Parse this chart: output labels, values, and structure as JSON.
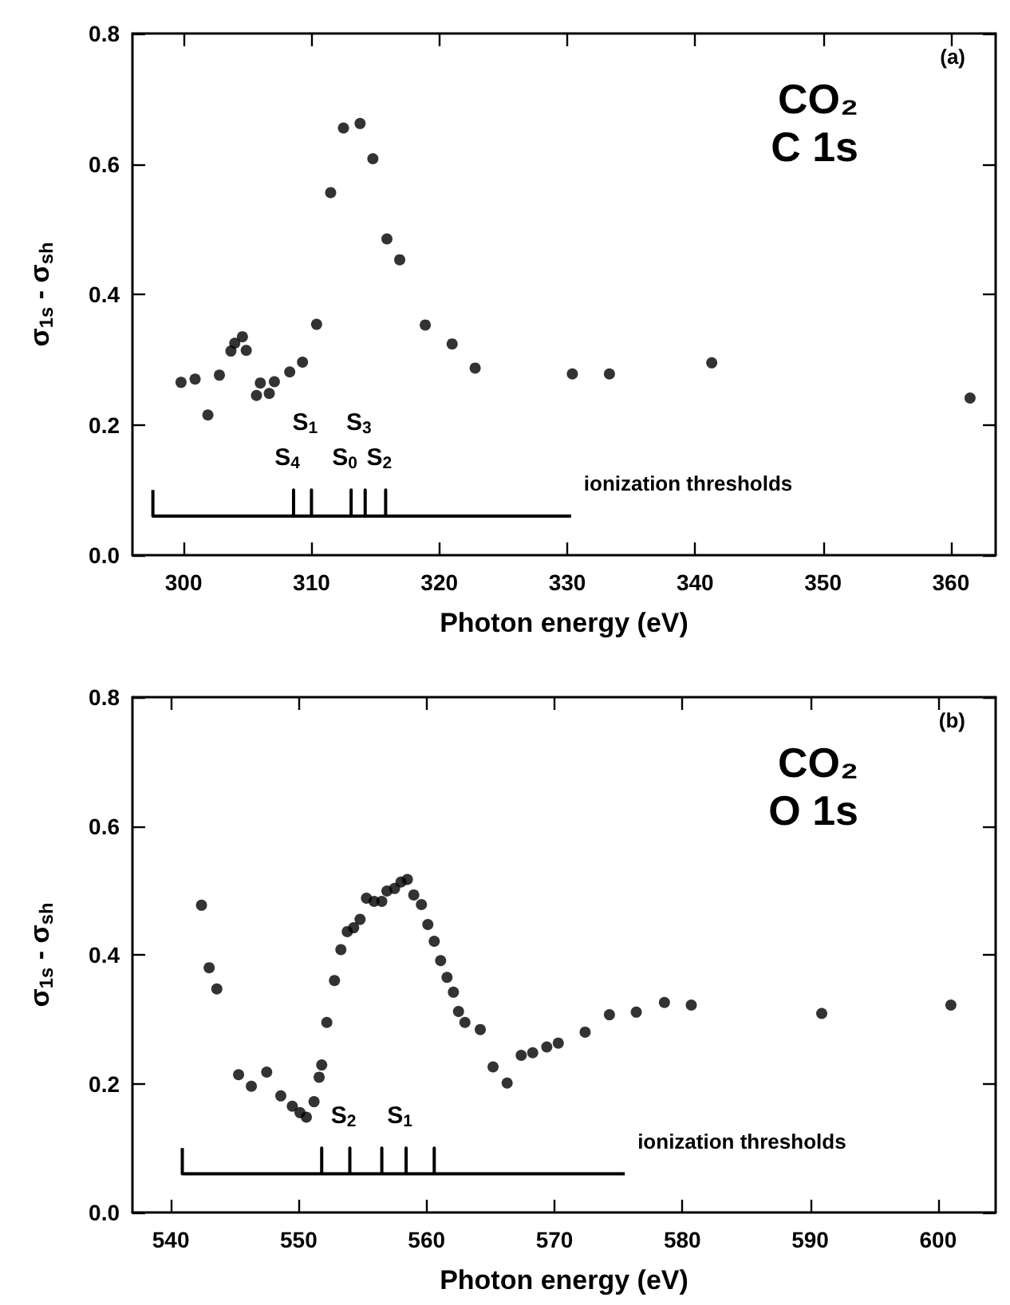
{
  "chart_data": [
    {
      "type": "scatter",
      "xlabel": "Photon energy (eV)",
      "ylabel": "σ$_{1s}$ - σ$_{sh}$",
      "marker": "circle",
      "grid": false,
      "xlim": [
        296,
        363.5
      ],
      "xticks": [
        300,
        310,
        320,
        330,
        340,
        350,
        360
      ],
      "ylim": [
        0,
        0.8
      ],
      "yticks": [
        {
          "value": 0,
          "label": "0.0"
        },
        {
          "value": 0.2,
          "label": "0.2"
        },
        {
          "value": 0.4,
          "label": "0.4"
        },
        {
          "value": 0.6,
          "label": "0.6"
        },
        {
          "value": 0.8,
          "label": "0.8"
        }
      ],
      "annotations": [
        "(a)",
        "CO₂",
        "C 1s",
        "ionization thresholds",
        {
          "text": "S$_{4}$",
          "x": 308.6,
          "y": 0.1
        },
        {
          "text": "S$_{1}$",
          "x": 310.0,
          "y": 0.1
        },
        {
          "text": "S$_{0}$",
          "x": 313.1,
          "y": 0.1
        },
        {
          "text": "S$_{3}$",
          "x": 314.2,
          "y": 0.1
        },
        {
          "text": "S$_{2}$",
          "x": 315.8,
          "y": 0.1
        }
      ],
      "series": [
        {
          "color": "#000000",
          "x": [
            299.8,
            300.9,
            301.9,
            302.8,
            303.7,
            304.0,
            304.6,
            304.9,
            305.7,
            306.0,
            306.7,
            307.1,
            308.3,
            309.3,
            310.4,
            311.5,
            312.5,
            313.8,
            314.8,
            315.9,
            316.9,
            318.9,
            321.0,
            322.8,
            330.4,
            333.3,
            341.3,
            361.5
          ],
          "values": [
            0.265,
            0.27,
            0.215,
            0.276,
            0.313,
            0.325,
            0.335,
            0.314,
            0.245,
            0.264,
            0.248,
            0.266,
            0.281,
            0.296,
            0.354,
            0.556,
            0.655,
            0.662,
            0.608,
            0.485,
            0.453,
            0.353,
            0.324,
            0.287,
            0.278,
            0.278,
            0.295,
            0.241
          ]
        },
        {
          "type": "line",
          "color": "#000000",
          "marker": "none",
          "x": [
            297.6,
            297.6,
            308.6,
            308.6,
            308.6,
            310.0,
            310.0,
            310.0,
            313.1,
            313.1,
            313.1,
            314.2,
            314.2,
            314.2,
            315.8,
            315.8,
            315.8,
            330.3
          ],
          "values": [
            0.1,
            0.06,
            0.06,
            0.1,
            0.06,
            0.06,
            0.1,
            0.06,
            0.06,
            0.1,
            0.06,
            0.06,
            0.1,
            0.06,
            0.06,
            0.1,
            0.06,
            0.06
          ]
        }
      ]
    },
    {
      "type": "scatter",
      "xlabel": "Photon energy (eV)",
      "ylabel": "σ$_{1s}$ - σ$_{sh}$",
      "marker": "circle",
      "grid": false,
      "xlim": [
        537,
        604.5
      ],
      "xticks": [
        540,
        550,
        560,
        570,
        580,
        590,
        600
      ],
      "ylim": [
        0,
        0.8
      ],
      "yticks": [
        {
          "value": 0,
          "label": "0.0"
        },
        {
          "value": 0.2,
          "label": "0.2"
        },
        {
          "value": 0.4,
          "label": "0.4"
        },
        {
          "value": 0.6,
          "label": "0.6"
        },
        {
          "value": 0.8,
          "label": "0.8"
        }
      ],
      "annotations": [
        "(b)",
        "CO₂",
        "O 1s",
        "ionization thresholds",
        {
          "text": "S$_{2}$",
          "x": 554.0,
          "y": 0.1
        },
        {
          "text": "S$_{1}$",
          "x": 558.4,
          "y": 0.1
        }
      ],
      "series": [
        {
          "color": "#000000",
          "x": [
            542.4,
            543.0,
            543.6,
            545.3,
            546.3,
            547.5,
            548.6,
            549.5,
            550.1,
            550.6,
            551.2,
            551.6,
            551.8,
            552.2,
            552.8,
            553.3,
            553.8,
            554.3,
            554.8,
            555.3,
            555.9,
            556.5,
            556.9,
            557.5,
            558.0,
            558.5,
            559.0,
            559.6,
            560.1,
            560.6,
            561.1,
            561.6,
            562.1,
            562.5,
            563.0,
            564.2,
            565.2,
            566.3,
            567.4,
            568.3,
            569.4,
            570.3,
            572.4,
            574.3,
            576.4,
            578.6,
            580.7,
            590.9,
            601.0
          ],
          "values": [
            0.477,
            0.38,
            0.347,
            0.214,
            0.196,
            0.218,
            0.181,
            0.165,
            0.155,
            0.148,
            0.172,
            0.21,
            0.229,
            0.295,
            0.36,
            0.408,
            0.436,
            0.442,
            0.455,
            0.488,
            0.483,
            0.483,
            0.499,
            0.503,
            0.513,
            0.517,
            0.493,
            0.478,
            0.447,
            0.421,
            0.391,
            0.365,
            0.342,
            0.312,
            0.295,
            0.284,
            0.226,
            0.201,
            0.244,
            0.248,
            0.257,
            0.263,
            0.28,
            0.307,
            0.311,
            0.326,
            0.322,
            0.309,
            0.322
          ]
        },
        {
          "type": "line",
          "color": "#000000",
          "marker": "none",
          "x": [
            540.9,
            540.9,
            551.8,
            551.8,
            551.8,
            554.0,
            554.0,
            554.0,
            556.5,
            556.5,
            556.5,
            558.4,
            558.4,
            558.4,
            560.6,
            560.6,
            560.6,
            575.5
          ],
          "values": [
            0.1,
            0.06,
            0.06,
            0.1,
            0.06,
            0.06,
            0.1,
            0.06,
            0.06,
            0.1,
            0.06,
            0.06,
            0.1,
            0.06,
            0.06,
            0.1,
            0.06,
            0.06
          ]
        }
      ]
    }
  ]
}
